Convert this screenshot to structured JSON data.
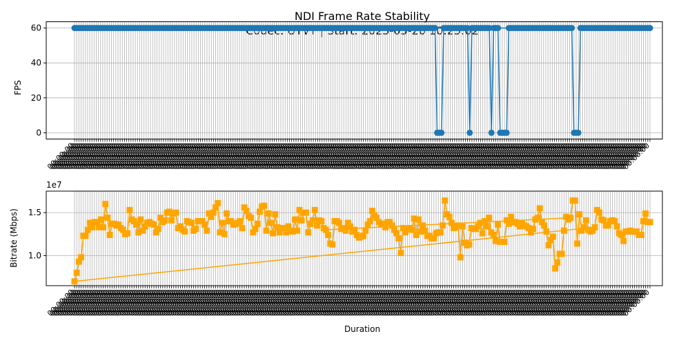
{
  "figure": {
    "title_line1": "NDI Frame Rate Stability",
    "title_line2": "Codec: UYVY | Start: 2025-05-26 10:25:02"
  },
  "chart_data": [
    {
      "type": "line",
      "ylabel": "FPS",
      "xlabel": "",
      "ylim": [
        -3.6,
        63.6
      ],
      "yticks": [
        0,
        20,
        40,
        60
      ],
      "grid": true,
      "color": "#1f77b4",
      "marker": "circle",
      "sample_count": 260,
      "x_tick_label": "00:00:00",
      "values": [
        60,
        60,
        60,
        60,
        60,
        60,
        60,
        60,
        60,
        60,
        60,
        60,
        60,
        60,
        60,
        60,
        60,
        60,
        60,
        60,
        60,
        60,
        60,
        60,
        60,
        60,
        60,
        60,
        60,
        60,
        60,
        60,
        60,
        60,
        60,
        60,
        60,
        60,
        60,
        60,
        60,
        60,
        60,
        60,
        60,
        60,
        60,
        60,
        60,
        60,
        60,
        60,
        60,
        60,
        60,
        60,
        60,
        60,
        60,
        60,
        60,
        60,
        60,
        60,
        60,
        60,
        60,
        60,
        60,
        60,
        60,
        60,
        60,
        60,
        60,
        60,
        60,
        60,
        60,
        60,
        60,
        60,
        60,
        60,
        60,
        60,
        60,
        60,
        60,
        60,
        60,
        60,
        60,
        60,
        60,
        60,
        60,
        60,
        60,
        60,
        60,
        60,
        60,
        60,
        60,
        60,
        60,
        60,
        60,
        60,
        60,
        60,
        60,
        60,
        60,
        60,
        60,
        60,
        60,
        60,
        60,
        60,
        60,
        60,
        60,
        60,
        60,
        60,
        60,
        60,
        60,
        60,
        60,
        60,
        60,
        60,
        60,
        60,
        60,
        60,
        60,
        60,
        60,
        60,
        60,
        60,
        60,
        60,
        60,
        60,
        60,
        60,
        60,
        60,
        60,
        60,
        60,
        60,
        60,
        60,
        60,
        60,
        60,
        60,
        60,
        60,
        60,
        0,
        0,
        0,
        60,
        60,
        60,
        60,
        60,
        60,
        60,
        60,
        60,
        60,
        60,
        60,
        0,
        60,
        60,
        60,
        60,
        60,
        60,
        60,
        60,
        60,
        0,
        60,
        60,
        60,
        0,
        0,
        0,
        0,
        60,
        60,
        60,
        60,
        60,
        60,
        60,
        60,
        60,
        60,
        60,
        60,
        60,
        60,
        60,
        60,
        60,
        60,
        60,
        60,
        60,
        60,
        60,
        60,
        60,
        60,
        60,
        60,
        60,
        60,
        0,
        0,
        0,
        60,
        60,
        60,
        60,
        60,
        60,
        60,
        60,
        60,
        60,
        60,
        60,
        60,
        60,
        60,
        60,
        60,
        60,
        60,
        60,
        60,
        60,
        60,
        60,
        60,
        60,
        60,
        60,
        60,
        60,
        60,
        60,
        60
      ],
      "wrap_segments": [
        [
          0,
          228
        ]
      ]
    },
    {
      "type": "line",
      "ylabel": "Bitrate (Mbps)",
      "xlabel": "Duration",
      "offset_label": "1e7",
      "ylim": [
        6.5,
        17.5
      ],
      "yticks": [
        10.0,
        15.0
      ],
      "ytick_labels": [
        "1.0",
        "1.5"
      ],
      "grid": true,
      "color": "#ffa500",
      "marker": "square",
      "sample_count": 260,
      "x_tick_label": "00:00:00",
      "values": [
        7.0,
        8.0,
        9.3,
        9.8,
        12.3,
        12.3,
        13.0,
        13.8,
        13.3,
        13.9,
        13.9,
        13.3,
        14.2,
        13.3,
        16.0,
        14.4,
        12.4,
        13.7,
        13.7,
        13.5,
        13.6,
        13.2,
        13.0,
        12.5,
        12.6,
        15.3,
        14.2,
        14.0,
        13.6,
        12.7,
        14.2,
        12.9,
        13.4,
        13.8,
        13.9,
        13.7,
        13.6,
        12.7,
        13.1,
        14.4,
        13.9,
        14.1,
        15.0,
        15.1,
        14.1,
        14.9,
        15.0,
        13.2,
        13.4,
        13.0,
        12.8,
        14.0,
        13.9,
        13.8,
        12.9,
        13.1,
        14.0,
        14.0,
        14.0,
        13.6,
        12.9,
        14.9,
        14.5,
        15.0,
        15.6,
        16.1,
        12.7,
        13.8,
        12.5,
        14.9,
        14.0,
        14.0,
        13.6,
        13.7,
        13.8,
        14.0,
        13.2,
        15.6,
        15.2,
        14.6,
        14.4,
        12.7,
        13.1,
        13.7,
        15.1,
        15.7,
        15.8,
        12.9,
        14.9,
        13.8,
        12.6,
        14.8,
        13.3,
        12.7,
        13.2,
        13.2,
        12.7,
        13.4,
        12.9,
        12.8,
        14.2,
        12.9,
        15.3,
        14.1,
        15.0,
        15.0,
        12.7,
        13.7,
        14.1,
        15.3,
        13.5,
        14.1,
        14.0,
        13.2,
        13.0,
        12.4,
        11.4,
        11.3,
        14.0,
        14.0,
        13.8,
        13.1,
        13.2,
        12.9,
        13.8,
        13.4,
        12.8,
        13.0,
        12.4,
        12.1,
        12.2,
        12.3,
        12.9,
        13.6,
        14.0,
        15.2,
        14.7,
        14.4,
        13.9,
        13.7,
        13.7,
        13.3,
        13.9,
        13.9,
        13.5,
        13.0,
        12.6,
        12.0,
        10.3,
        13.2,
        12.7,
        13.1,
        13.2,
        13.0,
        14.3,
        12.4,
        14.2,
        12.8,
        13.5,
        12.9,
        12.3,
        12.3,
        12.0,
        12.0,
        12.6,
        12.7,
        12.7,
        13.5,
        16.4,
        14.8,
        14.5,
        13.8,
        13.2,
        13.3,
        13.5,
        9.8,
        13.4,
        11.5,
        11.2,
        11.3,
        13.2,
        13.1,
        13.1,
        13.4,
        13.8,
        12.6,
        14.0,
        13.4,
        14.4,
        12.7,
        12.4,
        11.7,
        13.6,
        11.6,
        11.6,
        11.6,
        14.1,
        13.7,
        14.5,
        13.9,
        13.9,
        13.7,
        13.4,
        13.7,
        13.5,
        13.4,
        13.2,
        12.7,
        13.1,
        14.2,
        14.4,
        15.5,
        13.9,
        13.5,
        12.8,
        11.2,
        11.8,
        12.2,
        8.5,
        9.2,
        10.2,
        10.2,
        12.9,
        14.5,
        14.2,
        14.4,
        16.4,
        16.4,
        11.4,
        14.8,
        12.9,
        13.3,
        14.1,
        13.0,
        12.8,
        12.9,
        13.3,
        15.3,
        15.0,
        14.2,
        14.1,
        13.5,
        13.5,
        14.0,
        14.1,
        14.0,
        13.4,
        12.6,
        12.4,
        11.7,
        12.8,
        12.8,
        12.9,
        12.8,
        12.8,
        12.8,
        12.4,
        12.4,
        14.0,
        14.9,
        13.9,
        13.9
      ],
      "wrap_segments": [
        [
          0,
          236
        ],
        [
          114,
          225
        ]
      ]
    }
  ]
}
